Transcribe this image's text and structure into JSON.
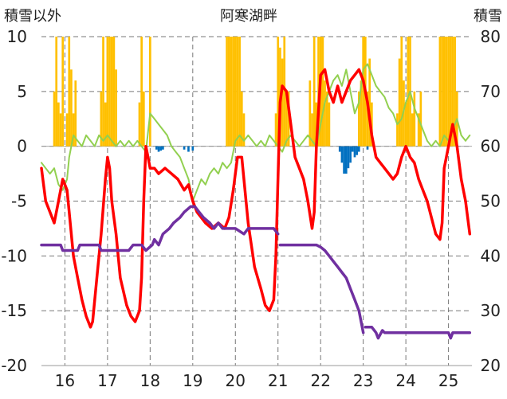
{
  "chart_data": {
    "type": "line",
    "title": "阿寒湖畔",
    "left_axis_label": "積雪以外",
    "right_axis_label": "積雪",
    "left_ylim": [
      -20,
      10
    ],
    "left_ticks": [
      "10",
      "5",
      "0",
      "-5",
      "-10",
      "-15",
      "-20"
    ],
    "right_ylim": [
      20,
      80
    ],
    "right_ticks": [
      "80",
      "70",
      "60",
      "50",
      "40",
      "30",
      "20"
    ],
    "x_range": [
      15.45,
      25.55
    ],
    "x_ticks": [
      "16",
      "17",
      "18",
      "19",
      "20",
      "21",
      "22",
      "23",
      "24",
      "25"
    ],
    "grid": true,
    "colors": {
      "red": "#ff0000",
      "green": "#92d050",
      "purple": "#7030a0",
      "orange": "#ffc000",
      "blue": "#0070c0",
      "grid": "#777777"
    },
    "series": [
      {
        "color": "red",
        "axis": "left",
        "x": [
          15.45,
          15.55,
          15.65,
          15.75,
          15.85,
          15.95,
          16.05,
          16.1,
          16.2,
          16.3,
          16.4,
          16.5,
          16.6,
          16.65,
          16.75,
          16.85,
          16.95,
          17.0,
          17.05,
          17.1,
          17.2,
          17.3,
          17.45,
          17.55,
          17.65,
          17.75,
          17.8,
          17.85,
          17.9,
          17.95,
          18.0,
          18.1,
          18.2,
          18.35,
          18.5,
          18.65,
          18.8,
          18.9,
          19.0,
          19.1,
          19.2,
          19.3,
          19.45,
          19.6,
          19.75,
          19.85,
          19.95,
          20.05,
          20.15,
          20.3,
          20.45,
          20.6,
          20.7,
          20.8,
          20.9,
          20.95,
          21.0,
          21.05,
          21.1,
          21.2,
          21.3,
          21.4,
          21.5,
          21.6,
          21.7,
          21.8,
          21.85,
          21.9,
          22.0,
          22.1,
          22.2,
          22.3,
          22.4,
          22.5,
          22.6,
          22.7,
          22.8,
          22.9,
          23.0,
          23.1,
          23.2,
          23.3,
          23.4,
          23.5,
          23.6,
          23.7,
          23.8,
          23.9,
          24.0,
          24.1,
          24.2,
          24.3,
          24.4,
          24.5,
          24.6,
          24.7,
          24.8,
          24.85,
          24.9,
          25.0,
          25.1,
          25.2,
          25.3,
          25.4,
          25.5
        ],
        "values": [
          -2,
          -5,
          -6,
          -7,
          -5,
          -3,
          -4,
          -6,
          -10,
          -12,
          -14,
          -15.5,
          -16.5,
          -16,
          -12,
          -8,
          -3,
          -1,
          -2,
          -5,
          -8,
          -12,
          -14.5,
          -15.5,
          -16,
          -15,
          -12,
          -5,
          0,
          -1,
          -2,
          -2,
          -2.5,
          -2,
          -2.5,
          -3,
          -4,
          -3.5,
          -5,
          -6,
          -6.5,
          -7,
          -7.5,
          -7,
          -7.5,
          -6.5,
          -4,
          -1,
          -1,
          -7,
          -11,
          -13,
          -14.5,
          -15,
          -14,
          -10,
          -3,
          4,
          5.5,
          5,
          2,
          -1,
          -2,
          -3,
          -5,
          -7.5,
          -6,
          0,
          6.5,
          7,
          5,
          4,
          5.5,
          4,
          5,
          6,
          6.5,
          7,
          6,
          4,
          1,
          -1,
          -1.5,
          -2,
          -2.5,
          -3,
          -2.5,
          -1,
          0,
          -1,
          -1.5,
          -3,
          -4,
          -5,
          -6.5,
          -8,
          -8.5,
          -7,
          -2,
          0,
          2,
          0,
          -3,
          -5,
          -8
        ]
      },
      {
        "color": "green",
        "axis": "right",
        "x": [
          15.45,
          15.55,
          15.65,
          15.75,
          15.85,
          15.95,
          16.05,
          16.1,
          16.2,
          16.3,
          16.4,
          16.5,
          16.6,
          16.7,
          16.8,
          16.9,
          17.0,
          17.1,
          17.2,
          17.3,
          17.4,
          17.5,
          17.6,
          17.7,
          17.8,
          17.9,
          18.0,
          18.1,
          18.2,
          18.3,
          18.4,
          18.5,
          18.6,
          18.7,
          18.8,
          18.9,
          19.0,
          19.1,
          19.2,
          19.3,
          19.4,
          19.5,
          19.6,
          19.7,
          19.8,
          19.9,
          20.0,
          20.1,
          20.2,
          20.3,
          20.4,
          20.5,
          20.6,
          20.7,
          20.8,
          20.9,
          21.0,
          21.1,
          21.2,
          21.3,
          21.4,
          21.5,
          21.6,
          21.7,
          21.8,
          21.9,
          22.0,
          22.1,
          22.2,
          22.3,
          22.4,
          22.5,
          22.6,
          22.7,
          22.8,
          22.9,
          23.0,
          23.1,
          23.2,
          23.3,
          23.4,
          23.5,
          23.6,
          23.7,
          23.8,
          23.9,
          24.0,
          24.1,
          24.2,
          24.3,
          24.4,
          24.5,
          24.6,
          24.7,
          24.8,
          24.9,
          25.0,
          25.1,
          25.2,
          25.3,
          25.4,
          25.5
        ],
        "values": [
          57,
          56,
          55,
          56,
          53,
          52,
          54,
          58,
          62,
          61,
          60,
          62,
          61,
          60,
          62,
          61,
          62,
          61,
          60,
          61,
          60,
          61,
          60,
          61,
          60,
          59,
          66,
          65,
          64,
          63,
          62,
          60,
          59,
          58,
          56,
          54,
          50,
          52,
          54,
          53,
          55,
          56,
          55,
          57,
          56,
          57,
          61,
          62,
          61,
          62,
          61,
          60,
          61,
          60,
          62,
          61,
          60,
          59,
          61,
          62,
          61,
          60,
          61,
          62,
          61,
          60,
          64,
          68,
          70,
          72,
          73,
          71,
          74,
          70,
          66,
          68,
          74,
          75,
          73,
          71,
          70,
          69,
          67,
          66,
          64,
          65,
          68,
          70,
          67,
          65,
          63,
          61,
          60,
          61,
          60,
          62,
          61,
          63,
          65,
          62,
          61,
          62
        ]
      },
      {
        "color": "purple",
        "axis": "left",
        "x": [
          15.45,
          15.9,
          15.95,
          16.3,
          16.35,
          16.8,
          16.85,
          17.5,
          17.6,
          17.8,
          17.9,
          18.05,
          18.1,
          18.2,
          18.3,
          18.45,
          18.55,
          18.7,
          18.8,
          18.95,
          19.05,
          19.15,
          19.25,
          19.4,
          19.5,
          19.6,
          19.7,
          19.9,
          20.0,
          20.2,
          20.3,
          20.5,
          20.6,
          20.8,
          20.9,
          21.0,
          null,
          21.05,
          21.9,
          22.0,
          22.1,
          22.2,
          22.3,
          22.4,
          22.5,
          22.6,
          22.7,
          22.8,
          22.9,
          22.95,
          23.0,
          null,
          23.05,
          23.2,
          23.3,
          23.35,
          23.45,
          23.5,
          23.6,
          24.0,
          24.5,
          25.0,
          25.05,
          25.1,
          25.5
        ],
        "values": [
          -9,
          -9,
          -9.5,
          -9.5,
          -9,
          -9,
          -9.5,
          -9.5,
          -9,
          -9,
          -9.5,
          -9,
          -8.5,
          -9,
          -8,
          -7.5,
          -7,
          -6.5,
          -6,
          -5.5,
          -5.5,
          -6,
          -6.5,
          -7,
          -7.5,
          -7,
          -7.5,
          -7.5,
          -7.5,
          -8,
          -7.5,
          -7.5,
          -7.5,
          -7.5,
          -7.5,
          -8,
          null,
          -9,
          -9,
          -9.2,
          -9.5,
          -10,
          -10.5,
          -11,
          -11.5,
          -12,
          -13,
          -14,
          -15,
          -16,
          -17,
          null,
          -16.5,
          -16.5,
          -17,
          -17.5,
          -16.8,
          -17,
          -17,
          -17,
          -17,
          -17,
          -17.5,
          -17,
          -17
        ]
      }
    ],
    "bars": [
      {
        "color": "orange",
        "axis": "left",
        "x": [
          15.75,
          15.8,
          15.85,
          15.9,
          15.95,
          16.05,
          16.1,
          16.15,
          16.2,
          16.25,
          16.85,
          16.9,
          16.95,
          17.0,
          17.05,
          17.1,
          17.15,
          17.2,
          17.75,
          17.8,
          17.85,
          18.0,
          19.8,
          19.85,
          19.9,
          19.95,
          20.0,
          20.05,
          20.1,
          20.15,
          20.2,
          20.95,
          21.0,
          21.05,
          21.1,
          21.15,
          21.2,
          21.25,
          21.75,
          21.8,
          21.85,
          21.9,
          21.95,
          22.0,
          22.05,
          22.1,
          22.15,
          22.2,
          22.9,
          22.95,
          23.0,
          23.05,
          23.1,
          23.15,
          23.2,
          23.8,
          23.85,
          23.9,
          23.95,
          24.0,
          24.05,
          24.1,
          24.15,
          24.2,
          24.3,
          24.35,
          24.8,
          24.85,
          24.9,
          24.95,
          25.0,
          25.05,
          25.1,
          25.15,
          25.2
        ],
        "values": [
          5,
          10,
          4,
          3,
          10,
          3,
          10,
          7,
          3,
          6,
          5,
          10,
          4,
          10,
          10,
          10,
          10,
          7,
          4,
          10,
          5,
          10,
          10,
          10,
          10,
          10,
          10,
          10,
          10,
          5,
          3,
          3,
          10,
          9,
          8,
          10,
          5,
          5,
          6,
          3,
          10,
          4,
          10,
          10,
          10,
          6,
          5,
          4,
          5,
          6,
          10,
          10,
          5,
          8,
          4,
          3,
          8,
          10,
          6,
          4,
          10,
          10,
          3,
          5,
          3,
          5,
          10,
          10,
          10,
          10,
          10,
          10,
          10,
          10,
          5
        ]
      },
      {
        "color": "blue",
        "axis": "left",
        "x": [
          18.15,
          18.2,
          18.25,
          18.3,
          18.8,
          18.9,
          19.0,
          22.45,
          22.5,
          22.55,
          22.6,
          22.65,
          22.7,
          22.75,
          22.8,
          22.85,
          22.9,
          23.1
        ],
        "values": [
          -0.3,
          -0.5,
          -0.4,
          -0.3,
          -0.3,
          -0.5,
          -0.4,
          -0.5,
          -1.5,
          -2.5,
          -2.5,
          -2,
          -1.5,
          -0.5,
          -1.0,
          -0.8,
          -0.5,
          -0.3
        ]
      }
    ]
  }
}
